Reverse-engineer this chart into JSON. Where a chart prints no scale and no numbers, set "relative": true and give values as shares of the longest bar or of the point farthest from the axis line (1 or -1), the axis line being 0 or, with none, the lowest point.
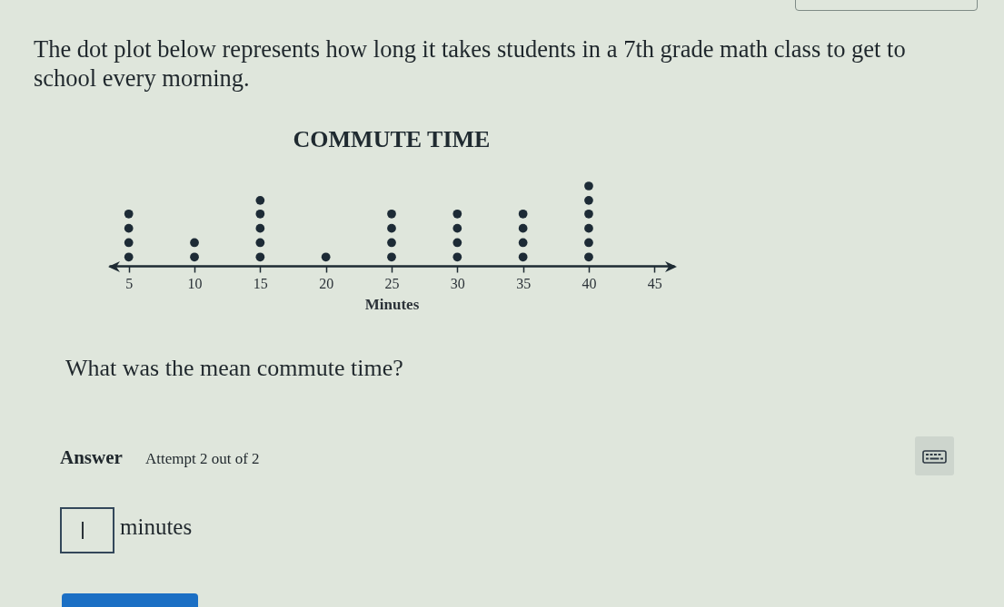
{
  "chart_data": {
    "type": "scatter",
    "title": "COMMUTE TIME",
    "xlabel": "Minutes",
    "x": [
      5,
      5,
      5,
      5,
      10,
      10,
      15,
      15,
      15,
      15,
      15,
      20,
      25,
      25,
      25,
      25,
      30,
      30,
      30,
      30,
      35,
      35,
      35,
      35,
      40,
      40,
      40,
      40,
      40,
      40
    ],
    "values": [
      0.11,
      0.29,
      0.47,
      0.65,
      0.11,
      0.29,
      0.11,
      0.29,
      0.47,
      0.65,
      0.82,
      0.11,
      0.11,
      0.29,
      0.47,
      0.65,
      0.11,
      0.29,
      0.47,
      0.65,
      0.11,
      0.29,
      0.47,
      0.65,
      0.11,
      0.29,
      0.47,
      0.65,
      0.82,
      1
    ],
    "relative": true,
    "color": "#1d2b36",
    "marker": "circle",
    "xlim": [
      3.5,
      46.5
    ],
    "xticks": [
      5,
      10,
      15,
      20,
      25,
      30,
      35,
      40,
      45
    ],
    "annotations": [
      "The dot plot below represents how long it takes students in a 7th grade math class to get to school every morning.",
      "What was the mean commute time?",
      "Answer",
      "Attempt 2 out of 2",
      "minutes"
    ]
  }
}
